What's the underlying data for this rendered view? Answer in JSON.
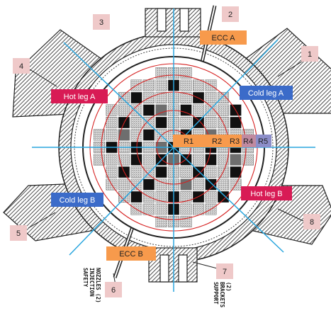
{
  "labels": {
    "ecc_a": "ECC A",
    "ecc_b": "ECC B",
    "hot_leg_a": "Hot leg A",
    "hot_leg_b": "Hot leg B",
    "cold_leg_a": "Cold leg A",
    "cold_leg_b": "Cold leg B",
    "r1": "R1",
    "r2": "R2",
    "r3": "R3",
    "r4": "R4",
    "r5": "R5"
  },
  "numbers": {
    "n1": "1",
    "n2": "2",
    "n3": "3",
    "n4": "4",
    "n5": "5",
    "n6": "6",
    "n7": "7",
    "n8": "8"
  },
  "side_text": {
    "safety_injection": [
      "SAFETY",
      "INJECTION",
      "NOZZLES (2)"
    ],
    "support_brackets": [
      "SUPPORT",
      "BRACKETS",
      "(2)"
    ]
  },
  "colors": {
    "orange": "#F79A4C",
    "crimson": "#D81B55",
    "blue": "#3B6BC9",
    "slate": "#8C8EC9",
    "pink_box": "#EFC9C9",
    "cyan_line": "#2AA6DE",
    "red_ring": "#D62020"
  },
  "core_pattern": [
    "00000lll00000",
    "000lllklll000",
    "00lkllllkll00",
    "0lllkdlklllk0",
    "0lkllkllkllk0",
    "lldlkllkldlll",
    "lklkldkllklkl",
    "lllklkdklkldl",
    "0lkllkllkllk0",
    "0lllklldlkll0",
    "00lkllklklk00",
    "000lllklll000",
    "00000lll00000"
  ]
}
